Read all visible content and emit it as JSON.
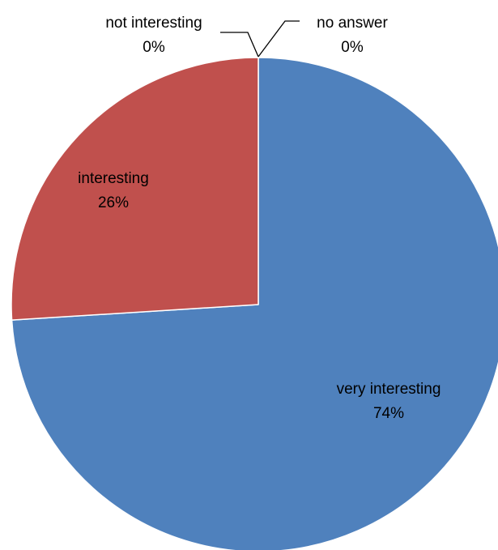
{
  "chart_data": {
    "type": "pie",
    "title": "",
    "legend": "none",
    "slices": [
      {
        "label": "very interesting",
        "value": 74,
        "percent_label": "74%",
        "color": "#4F81BD"
      },
      {
        "label": "interesting",
        "value": 26,
        "percent_label": "26%",
        "color": "#C0504D"
      },
      {
        "label": "not interesting",
        "value": 0,
        "percent_label": "0%",
        "color": "#9BBB59"
      },
      {
        "label": "no answer",
        "value": 0,
        "percent_label": "0%",
        "color": "#8064A2"
      }
    ],
    "start_angle": "12 o'clock",
    "direction": "clockwise"
  }
}
